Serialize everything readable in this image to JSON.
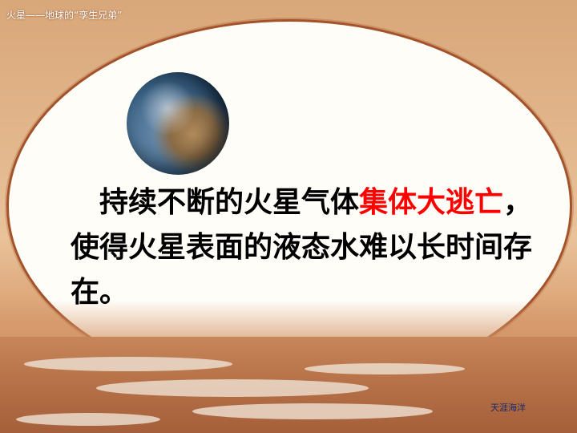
{
  "slide": {
    "title": "火星——地球的“孪生兄弟”",
    "paragraph": {
      "part1": "　持续不断的火星气体",
      "part_red": "集体大逃亡",
      "part2": "，使得火星表面的液态水难以长时间存在。"
    },
    "watermark": "天涯海洋",
    "accent_color": "#ff0000",
    "frame_color": "#a4522a"
  },
  "icons": {
    "earth": "earth-image"
  }
}
